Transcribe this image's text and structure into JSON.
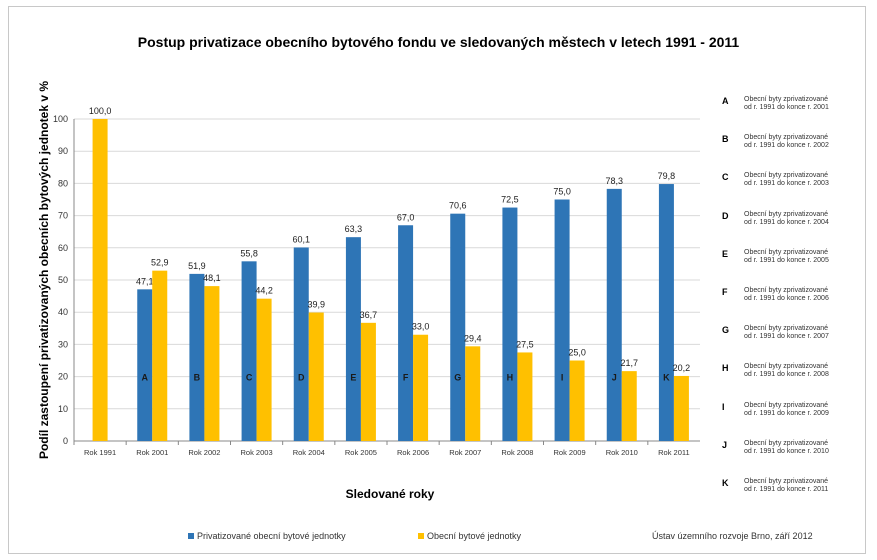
{
  "chart_data": {
    "type": "bar",
    "title": "Postup privatizace obecního bytového fondu ve sledovaných městech v letech 1991 - 2011",
    "xlabel": "Sledované roky",
    "ylabel": "Podíl zastoupení privatizovaných obecních bytových jednotek v %",
    "ylim": [
      0,
      100
    ],
    "yticks": [
      "0",
      "10",
      "20",
      "30",
      "40",
      "50",
      "60",
      "70",
      "80",
      "90",
      "100"
    ],
    "categories": [
      "Rok 1991",
      "Rok 2001",
      "Rok 2002",
      "Rok 2003",
      "Rok 2004",
      "Rok 2005",
      "Rok 2006",
      "Rok 2007",
      "Rok 2008",
      "Rok 2009",
      "Rok 2010",
      "Rok 2011"
    ],
    "bar_letters": [
      "",
      "A",
      "B",
      "C",
      "D",
      "E",
      "F",
      "G",
      "H",
      "I",
      "J",
      "K"
    ],
    "series": [
      {
        "name": "Privatizované obecní bytové jednotky",
        "color": "#2e75b6",
        "values": [
          null,
          47.1,
          51.9,
          55.8,
          60.1,
          63.3,
          67.0,
          70.6,
          72.5,
          75.0,
          78.3,
          79.8
        ],
        "labels": [
          "",
          "47,1",
          "51,9",
          "55,8",
          "60,1",
          "63,3",
          "67,0",
          "70,6",
          "72,5",
          "75,0",
          "78,3",
          "79,8"
        ]
      },
      {
        "name": "Obecní bytové jednotky",
        "color": "#ffc000",
        "values": [
          100.0,
          52.9,
          48.1,
          44.2,
          39.9,
          36.7,
          33.0,
          29.4,
          27.5,
          25.0,
          21.7,
          20.2
        ],
        "labels": [
          "100,0",
          "52,9",
          "48,1",
          "44,2",
          "39,9",
          "36,7",
          "33,0",
          "29,4",
          "27,5",
          "25,0",
          "21,7",
          "20,2"
        ]
      }
    ],
    "grid": true,
    "legend_placement": "bottom",
    "notes": [
      {
        "letter": "A",
        "text": "Obecní byty zprivatizované\nod r. 1991 do konce r. 2001"
      },
      {
        "letter": "B",
        "text": "Obecní byty zprivatizované\nod r. 1991 do konce r. 2002"
      },
      {
        "letter": "C",
        "text": "Obecní byty zprivatizované\nod r. 1991 do konce r. 2003"
      },
      {
        "letter": "D",
        "text": "Obecní byty zprivatizované\nod r. 1991 do konce r. 2004"
      },
      {
        "letter": "E",
        "text": "Obecní byty zprivatizované\nod r. 1991 do konce r. 2005"
      },
      {
        "letter": "F",
        "text": "Obecní byty zprivatizované\nod r. 1991 do konce r. 2006"
      },
      {
        "letter": "G",
        "text": "Obecní byty zprivatizované\nod r. 1991 do konce r. 2007"
      },
      {
        "letter": "H",
        "text": "Obecní byty zprivatizované\nod r. 1991 do konce r. 2008"
      },
      {
        "letter": "I",
        "text": "Obecní byty zprivatizované\nod r. 1991 do konce r. 2009"
      },
      {
        "letter": "J",
        "text": "Obecní byty zprivatizované\nod r. 1991 do konce r. 2010"
      },
      {
        "letter": "K",
        "text": "Obecní byty zprivatizované\nod r. 1991 do konce r. 2011"
      }
    ]
  },
  "source": "Ústav územního rozvoje Brno, září 2012"
}
